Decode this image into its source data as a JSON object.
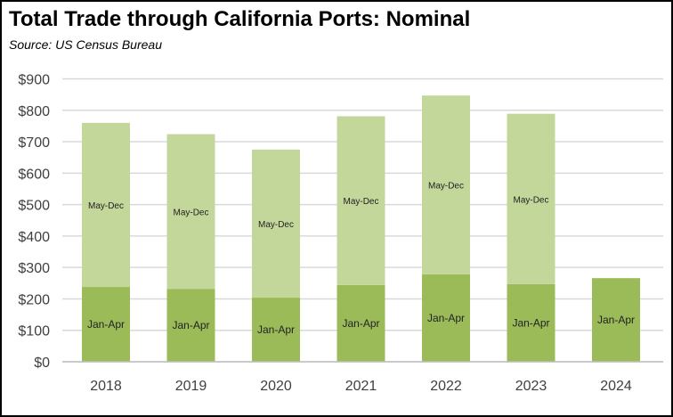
{
  "chart_data": {
    "type": "bar",
    "stacked": true,
    "title": "Total Trade through California Ports:  Nominal",
    "subtitle": "Source:  US Census Bureau",
    "xlabel": "",
    "ylabel": "",
    "ylim": [
      0,
      900
    ],
    "yticks": [
      "$0",
      "$100",
      "$200",
      "$300",
      "$400",
      "$500",
      "$600",
      "$700",
      "$800",
      "$900"
    ],
    "categories": [
      "2018",
      "2019",
      "2020",
      "2021",
      "2022",
      "2023",
      "2024"
    ],
    "series": [
      {
        "name": "Jan-Apr",
        "color": "#9bbb59",
        "values": [
          238,
          232,
          204,
          244,
          278,
          247,
          266
        ]
      },
      {
        "name": "May-Dec",
        "color": "#c4d79b",
        "values": [
          522,
          492,
          471,
          537,
          569,
          542,
          null
        ]
      }
    ],
    "grid": true,
    "legend": "none"
  }
}
